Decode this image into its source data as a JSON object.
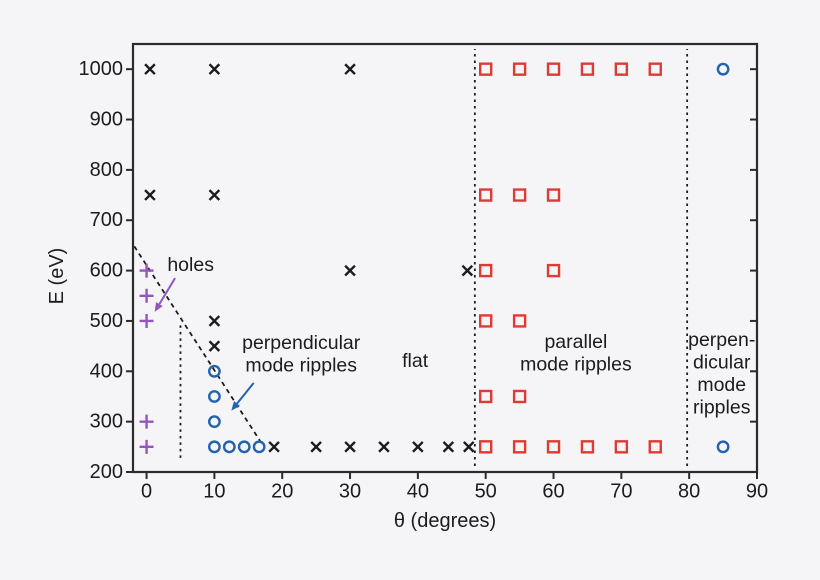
{
  "figure": {
    "background": "#f5f4f6",
    "axis_color": "#2b2b2b",
    "text_color": "#1c1c1c"
  },
  "chart_data": {
    "type": "scatter",
    "title": "",
    "xlabel": "θ (degrees)",
    "ylabel": "E (eV)",
    "xlim": [
      -2,
      90
    ],
    "ylim": [
      200,
      1050
    ],
    "grid": false,
    "xticks": [
      0,
      10,
      20,
      30,
      40,
      50,
      60,
      70,
      80,
      90
    ],
    "yticks": [
      200,
      300,
      400,
      500,
      600,
      700,
      800,
      900,
      1000
    ],
    "series": [
      {
        "name": "holes",
        "marker": "plus",
        "color": "#9257ba",
        "points": [
          [
            0,
            600
          ],
          [
            0,
            550
          ],
          [
            0,
            500
          ],
          [
            0,
            300
          ],
          [
            0,
            250
          ]
        ]
      },
      {
        "name": "perpendicular-mode-ripples",
        "marker": "circle",
        "color": "#2363ad",
        "points": [
          [
            10,
            400
          ],
          [
            10,
            350
          ],
          [
            10,
            300
          ],
          [
            10,
            250
          ],
          [
            12.2,
            250
          ],
          [
            14.4,
            250
          ],
          [
            16.6,
            250
          ],
          [
            85,
            1000
          ],
          [
            85,
            250
          ]
        ]
      },
      {
        "name": "flat",
        "marker": "cross",
        "color": "#1c1c1c",
        "points": [
          [
            0.5,
            1000
          ],
          [
            10,
            1000
          ],
          [
            30,
            1000
          ],
          [
            0.5,
            750
          ],
          [
            10,
            750
          ],
          [
            30,
            600
          ],
          [
            47.3,
            600
          ],
          [
            10,
            500
          ],
          [
            10,
            450
          ],
          [
            18.8,
            250
          ],
          [
            25,
            250
          ],
          [
            30,
            250
          ],
          [
            35,
            250
          ],
          [
            40,
            250
          ],
          [
            44.5,
            250
          ],
          [
            47.5,
            250
          ]
        ]
      },
      {
        "name": "parallel-mode-ripples",
        "marker": "square",
        "color": "#e03a35",
        "points": [
          [
            50,
            1000
          ],
          [
            55,
            1000
          ],
          [
            60,
            1000
          ],
          [
            65,
            1000
          ],
          [
            70,
            1000
          ],
          [
            75,
            1000
          ],
          [
            50,
            750
          ],
          [
            55,
            750
          ],
          [
            60,
            750
          ],
          [
            50,
            600
          ],
          [
            60,
            600
          ],
          [
            50,
            500
          ],
          [
            55,
            500
          ],
          [
            50,
            350
          ],
          [
            55,
            350
          ],
          [
            50,
            250
          ],
          [
            55,
            250
          ],
          [
            60,
            250
          ],
          [
            65,
            250
          ],
          [
            70,
            250
          ],
          [
            75,
            250
          ]
        ]
      }
    ],
    "boundaries": [
      {
        "id": "hole-ripple-boundary",
        "type": "vline",
        "x": 5,
        "e1": 228,
        "e2": 492,
        "dash": "short"
      },
      {
        "id": "ripple-flat-diagonal-boundary",
        "type": "segment",
        "x1": -1.8,
        "e1": 648,
        "x2": 17.2,
        "e2": 252,
        "dash": "long"
      },
      {
        "id": "flat-parallel-boundary",
        "type": "vline",
        "x": 48.4,
        "e1": 212,
        "e2": 1040,
        "dash": "short"
      },
      {
        "id": "parallel-perpendicular-boundary",
        "type": "vline",
        "x": 79.7,
        "e1": 212,
        "e2": 1040,
        "dash": "short"
      }
    ],
    "annotations": [
      {
        "id": "holes",
        "lines": [
          "holes"
        ],
        "color": "#9257ba",
        "x": 6.5,
        "y": 611
      },
      {
        "id": "perpendicular-mode-ripples",
        "lines": [
          "perpendicular",
          "mode ripples"
        ],
        "color": "#2363ad",
        "x": 22.8,
        "y": 434
      },
      {
        "id": "flat",
        "lines": [
          "flat"
        ],
        "color": "#1c1c1c",
        "x": 39.6,
        "y": 420
      },
      {
        "id": "parallel-mode-ripples",
        "lines": [
          "parallel",
          "mode ripples"
        ],
        "color": "#e03a35",
        "x": 63.3,
        "y": 436
      },
      {
        "id": "perpendicular-mode-ripples-right",
        "lines": [
          "perpen-",
          "dicular",
          "mode",
          "ripples"
        ],
        "color": "#2363ad",
        "x": 84.8,
        "y": 395
      }
    ],
    "arrows": [
      {
        "id": "holes-arrow",
        "color": "#9257ba",
        "x1": 4.2,
        "e1": 585,
        "x2": 1.2,
        "e2": 518
      },
      {
        "id": "perpendicular-ripples-arrow",
        "color": "#2363ad",
        "x1": 15.8,
        "e1": 377,
        "x2": 12.5,
        "e2": 322
      }
    ],
    "legend_position": "none"
  }
}
